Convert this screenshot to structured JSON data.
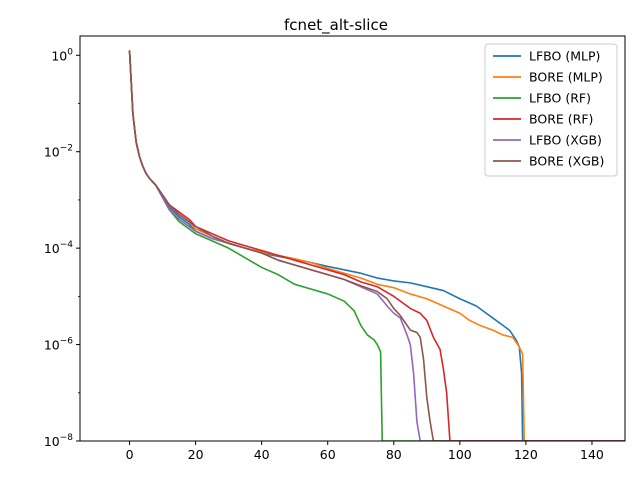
{
  "chart_data": {
    "type": "line",
    "title": "fcnet_alt-slice",
    "xlabel": "",
    "ylabel": "",
    "xlim": [
      -15,
      150
    ],
    "ylim_log10": [
      -8,
      0.4
    ],
    "yscale": "log",
    "grid": false,
    "legend_position": "top-right",
    "x_ticks": [
      0,
      20,
      40,
      60,
      80,
      100,
      120,
      140
    ],
    "x_tick_labels": [
      "0",
      "20",
      "40",
      "60",
      "80",
      "100",
      "120",
      "140"
    ],
    "y_ticks_log10": [
      0,
      -2,
      -4,
      -6,
      -8
    ],
    "y_tick_labels": [
      {
        "base": "10",
        "exp": "0"
      },
      {
        "base": "10",
        "exp": "−2"
      },
      {
        "base": "10",
        "exp": "−4"
      },
      {
        "base": "10",
        "exp": "−6"
      },
      {
        "base": "10",
        "exp": "−8"
      }
    ],
    "series": [
      {
        "name": "LFBO (MLP)",
        "color": "#1f77b4",
        "x": [
          0,
          1,
          2,
          3,
          4,
          5,
          6,
          8,
          10,
          12,
          15,
          18,
          20,
          25,
          30,
          35,
          40,
          45,
          50,
          55,
          60,
          65,
          70,
          75,
          80,
          85,
          90,
          95,
          100,
          105,
          108,
          110,
          112,
          115,
          117,
          118,
          118.7,
          119,
          150
        ],
        "y_log10": [
          0.1,
          -1.2,
          -1.8,
          -2.1,
          -2.3,
          -2.45,
          -2.55,
          -2.7,
          -2.95,
          -3.15,
          -3.35,
          -3.5,
          -3.65,
          -3.8,
          -3.9,
          -4.0,
          -4.1,
          -4.17,
          -4.23,
          -4.3,
          -4.38,
          -4.45,
          -4.52,
          -4.62,
          -4.68,
          -4.72,
          -4.8,
          -4.88,
          -5.05,
          -5.2,
          -5.35,
          -5.45,
          -5.55,
          -5.7,
          -5.9,
          -6.05,
          -6.6,
          -8,
          -8
        ]
      },
      {
        "name": "BORE (MLP)",
        "color": "#ff7f0e",
        "x": [
          0,
          1,
          2,
          3,
          4,
          5,
          6,
          8,
          10,
          12,
          15,
          18,
          20,
          25,
          30,
          35,
          40,
          45,
          50,
          55,
          60,
          65,
          70,
          75,
          80,
          85,
          90,
          95,
          100,
          103,
          106,
          108,
          110,
          113,
          116,
          118,
          119,
          119.5,
          150
        ],
        "y_log10": [
          0.1,
          -1.2,
          -1.8,
          -2.1,
          -2.3,
          -2.45,
          -2.55,
          -2.7,
          -2.9,
          -3.1,
          -3.3,
          -3.45,
          -3.6,
          -3.75,
          -3.9,
          -4.0,
          -4.08,
          -4.15,
          -4.22,
          -4.3,
          -4.42,
          -4.52,
          -4.62,
          -4.75,
          -4.82,
          -4.95,
          -5.05,
          -5.2,
          -5.35,
          -5.5,
          -5.6,
          -5.65,
          -5.7,
          -5.8,
          -5.85,
          -6.05,
          -6.2,
          -8,
          -8
        ]
      },
      {
        "name": "LFBO (RF)",
        "color": "#2ca02c",
        "x": [
          0,
          1,
          2,
          3,
          4,
          5,
          6,
          8,
          10,
          12,
          15,
          18,
          20,
          25,
          30,
          35,
          40,
          45,
          50,
          55,
          60,
          65,
          68,
          70,
          72,
          74,
          75,
          76,
          76.5,
          150
        ],
        "y_log10": [
          0.1,
          -1.2,
          -1.8,
          -2.1,
          -2.3,
          -2.45,
          -2.55,
          -2.7,
          -2.95,
          -3.2,
          -3.45,
          -3.6,
          -3.7,
          -3.85,
          -4.0,
          -4.2,
          -4.4,
          -4.55,
          -4.75,
          -4.85,
          -4.95,
          -5.1,
          -5.3,
          -5.6,
          -5.8,
          -5.9,
          -6.0,
          -6.15,
          -8,
          -8
        ]
      },
      {
        "name": "BORE (RF)",
        "color": "#d62728",
        "x": [
          0,
          1,
          2,
          3,
          4,
          5,
          6,
          8,
          10,
          12,
          15,
          18,
          20,
          25,
          30,
          35,
          40,
          45,
          50,
          55,
          60,
          65,
          70,
          75,
          80,
          85,
          88,
          90,
          92,
          94,
          95,
          96,
          97,
          150
        ],
        "y_log10": [
          0.1,
          -1.2,
          -1.8,
          -2.1,
          -2.3,
          -2.45,
          -2.55,
          -2.7,
          -2.9,
          -3.1,
          -3.25,
          -3.4,
          -3.55,
          -3.7,
          -3.85,
          -3.95,
          -4.05,
          -4.15,
          -4.25,
          -4.35,
          -4.45,
          -4.55,
          -4.7,
          -4.8,
          -5.0,
          -5.25,
          -5.35,
          -5.5,
          -5.85,
          -6.1,
          -6.5,
          -7.0,
          -8,
          -8
        ]
      },
      {
        "name": "LFBO (XGB)",
        "color": "#9467bd",
        "x": [
          0,
          1,
          2,
          3,
          4,
          5,
          6,
          8,
          10,
          12,
          15,
          18,
          20,
          25,
          30,
          35,
          40,
          45,
          50,
          55,
          60,
          65,
          70,
          75,
          78,
          80,
          82,
          84,
          85,
          86,
          87,
          88,
          150
        ],
        "y_log10": [
          0.1,
          -1.2,
          -1.8,
          -2.1,
          -2.3,
          -2.45,
          -2.55,
          -2.7,
          -2.95,
          -3.2,
          -3.4,
          -3.55,
          -3.65,
          -3.8,
          -3.9,
          -4.0,
          -4.1,
          -4.25,
          -4.35,
          -4.45,
          -4.55,
          -4.65,
          -4.8,
          -4.95,
          -5.2,
          -5.35,
          -5.45,
          -5.8,
          -6.0,
          -6.6,
          -7.6,
          -8,
          -8
        ]
      },
      {
        "name": "BORE (XGB)",
        "color": "#8c564b",
        "x": [
          0,
          1,
          2,
          3,
          4,
          5,
          6,
          8,
          10,
          12,
          15,
          18,
          20,
          25,
          30,
          35,
          40,
          45,
          50,
          55,
          60,
          65,
          70,
          75,
          78,
          80,
          82,
          85,
          87,
          88,
          89,
          90,
          91,
          92,
          150
        ],
        "y_log10": [
          0.1,
          -1.2,
          -1.8,
          -2.1,
          -2.3,
          -2.45,
          -2.55,
          -2.7,
          -2.9,
          -3.1,
          -3.3,
          -3.45,
          -3.55,
          -3.75,
          -3.9,
          -4.0,
          -4.1,
          -4.25,
          -4.35,
          -4.45,
          -4.55,
          -4.65,
          -4.78,
          -4.9,
          -5.05,
          -5.25,
          -5.4,
          -5.7,
          -5.75,
          -5.85,
          -6.3,
          -7.1,
          -7.6,
          -8,
          -8
        ]
      }
    ]
  }
}
